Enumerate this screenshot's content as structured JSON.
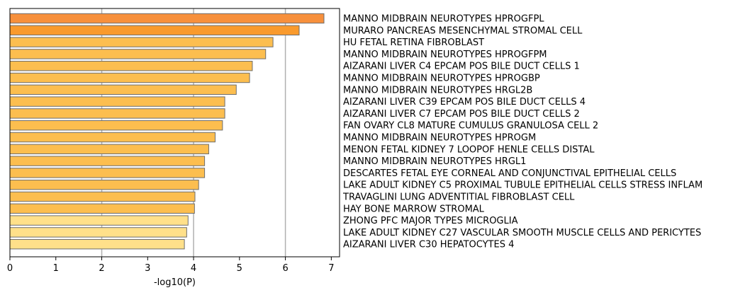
{
  "chart_data": {
    "type": "bar",
    "orientation": "horizontal",
    "xlabel": "-log10(P)",
    "xlim": [
      0,
      7.18
    ],
    "xticks": [
      0,
      1,
      2,
      3,
      4,
      5,
      6,
      7
    ],
    "grid": "vertical gridlines at 2, 4, 6",
    "categories": [
      "MANNO MIDBRAIN NEUROTYPES HPROGFPL",
      "MURARO PANCREAS MESENCHYMAL STROMAL CELL",
      "HU FETAL RETINA FIBROBLAST",
      "MANNO MIDBRAIN NEUROTYPES HPROGFPM",
      "AIZARANI LIVER C4 EPCAM POS BILE DUCT CELLS 1",
      "MANNO MIDBRAIN NEUROTYPES HPROGBP",
      "MANNO MIDBRAIN NEUROTYPES HRGL2B",
      "AIZARANI LIVER C39 EPCAM POS BILE DUCT CELLS 4",
      "AIZARANI LIVER C7 EPCAM POS BILE DUCT CELLS 2",
      "FAN OVARY CL8 MATURE CUMULUS GRANULOSA CELL 2",
      "MANNO MIDBRAIN NEUROTYPES HPROGM",
      "MENON FETAL KIDNEY 7 LOOPOF HENLE CELLS DISTAL",
      "MANNO MIDBRAIN NEUROTYPES HRGL1",
      "DESCARTES FETAL EYE CORNEAL AND CONJUNCTIVAL EPITHELIAL CELLS",
      "LAKE ADULT KIDNEY C5 PROXIMAL TUBULE EPITHELIAL CELLS STRESS INFLAM",
      "TRAVAGLINI LUNG ADVENTITIAL FIBROBLAST CELL",
      "HAY BONE MARROW STROMAL",
      "ZHONG PFC MAJOR TYPES MICROGLIA",
      "LAKE ADULT KIDNEY C27 VASCULAR SMOOTH MUSCLE CELLS AND PERICYTES",
      "AIZARANI LIVER C30 HEPATOCYTES 4"
    ],
    "values": [
      6.84,
      6.3,
      5.73,
      5.57,
      5.28,
      5.22,
      4.93,
      4.68,
      4.68,
      4.63,
      4.47,
      4.33,
      4.24,
      4.24,
      4.11,
      4.03,
      4.02,
      3.88,
      3.85,
      3.8
    ],
    "bar_colors": [
      "#f7903c",
      "#f99a2d",
      "#fcbe4f",
      "#fcbe4f",
      "#fcbe4f",
      "#fcbe4f",
      "#fcbe4f",
      "#fcbe4f",
      "#fcbe4f",
      "#fcbe4f",
      "#fcbe4f",
      "#fcbe4f",
      "#fcbe4f",
      "#fcbe4f",
      "#fcbe4f",
      "#fcbe4f",
      "#fcbe4f",
      "#ffe08a",
      "#ffe08a",
      "#ffe08a"
    ],
    "bar_edge_color": "#6e6e6e",
    "grid_color": "#b0b0b0"
  }
}
